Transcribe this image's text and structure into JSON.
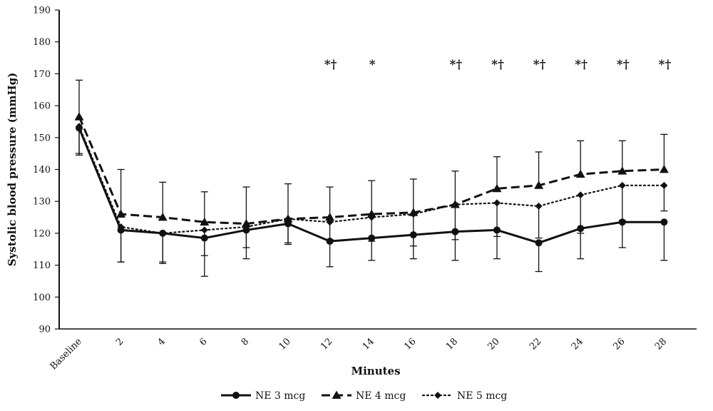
{
  "chart_data": {
    "type": "line",
    "title": "",
    "xlabel": "Minutes",
    "ylabel": "Systolic blood pressure (mmHg)",
    "ylim": [
      90,
      190
    ],
    "yticks": [
      90,
      100,
      110,
      120,
      130,
      140,
      150,
      160,
      170,
      180,
      190
    ],
    "categories": [
      "Baseline",
      "2",
      "4",
      "6",
      "8",
      "10",
      "12",
      "14",
      "16",
      "18",
      "20",
      "22",
      "24",
      "26",
      "28"
    ],
    "grid": false,
    "legend_position": "bottom",
    "series": [
      {
        "name": "NE 3 mcg",
        "marker": "circle",
        "dash": "solid",
        "values": [
          153,
          121,
          120,
          118.5,
          121,
          123,
          117.5,
          118.5,
          119.5,
          120.5,
          121,
          117,
          121.5,
          123.5,
          123.5
        ],
        "upper": [
          153,
          121,
          120,
          118.5,
          121,
          123,
          117.5,
          118.5,
          119.5,
          120.5,
          121,
          117,
          121.5,
          123.5,
          123.5
        ],
        "lower": [
          145,
          111,
          110.5,
          106.5,
          112,
          117,
          109.5,
          111.5,
          112,
          111.5,
          112,
          108,
          112,
          115.5,
          111.5
        ]
      },
      {
        "name": "NE 4 mcg",
        "marker": "triangle",
        "dash": "dash",
        "values": [
          156.5,
          126,
          125,
          123.5,
          123,
          124.5,
          125,
          126,
          126.5,
          129,
          134,
          135,
          138.5,
          139.5,
          140
        ],
        "upper": [
          168,
          140,
          136,
          133,
          134.5,
          135.5,
          134.5,
          136.5,
          137,
          139.5,
          144,
          145.5,
          149,
          149,
          151
        ],
        "lower": [
          156.5,
          126,
          125,
          123.5,
          123,
          124.5,
          125,
          126,
          126.5,
          129,
          134,
          135,
          138.5,
          139.5,
          140
        ]
      },
      {
        "name": "NE 5 mcg",
        "marker": "diamond",
        "dash": "dot",
        "values": [
          153.5,
          122,
          120,
          121,
          122,
          124.5,
          123.5,
          125,
          126,
          129,
          129.5,
          128.5,
          132,
          135,
          135
        ],
        "upper": [
          153.5,
          122,
          120,
          121,
          122,
          124.5,
          123.5,
          125,
          126,
          129,
          129.5,
          128.5,
          132,
          135,
          135
        ],
        "lower": [
          144.5,
          111,
          111,
          113,
          115.5,
          116.5,
          118,
          117.5,
          116,
          118,
          119,
          118.5,
          120,
          124,
          127
        ]
      }
    ],
    "annotations": [
      {
        "category": "12",
        "text": "*†"
      },
      {
        "category": "14",
        "text": "*"
      },
      {
        "category": "18",
        "text": "*†"
      },
      {
        "category": "20",
        "text": "*†"
      },
      {
        "category": "22",
        "text": "*†"
      },
      {
        "category": "24",
        "text": "*†"
      },
      {
        "category": "26",
        "text": "*†"
      },
      {
        "category": "28",
        "text": "*†"
      }
    ]
  }
}
